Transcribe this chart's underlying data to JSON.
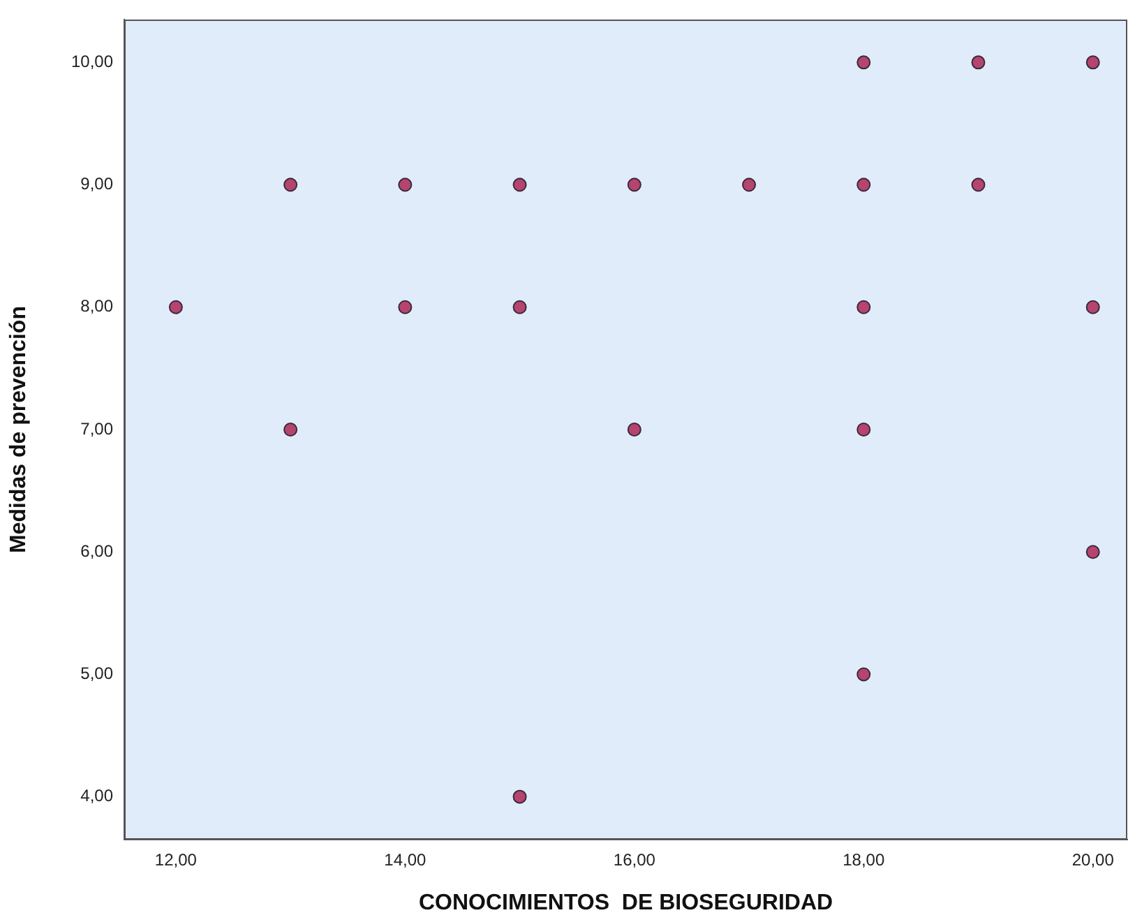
{
  "chart_data": {
    "type": "scatter",
    "xlabel": "CONOCIMIENTOS  DE BIOSEGURIDAD",
    "ylabel": "Medidas de prevención",
    "marker": "circle",
    "grid": false,
    "x": [
      12,
      13,
      13,
      14,
      14,
      15,
      15,
      15,
      16,
      16,
      17,
      18,
      18,
      18,
      18,
      18,
      19,
      19,
      20,
      20,
      20
    ],
    "values": [
      8,
      9,
      7,
      9,
      8,
      9,
      8,
      4,
      9,
      7,
      9,
      10,
      9,
      8,
      7,
      5,
      10,
      9,
      10,
      8,
      6
    ],
    "color": "#b5446f",
    "xlim": [
      11.55,
      20.3
    ],
    "xticks": [
      {
        "value": 12,
        "label": "12,00"
      },
      {
        "value": 14,
        "label": "14,00"
      },
      {
        "value": 16,
        "label": "16,00"
      },
      {
        "value": 18,
        "label": "18,00"
      },
      {
        "value": 20,
        "label": "20,00"
      }
    ],
    "ylim": [
      3.65,
      10.35
    ],
    "yticks": [
      {
        "value": 4,
        "label": "4,00"
      },
      {
        "value": 5,
        "label": "5,00"
      },
      {
        "value": 6,
        "label": "6,00"
      },
      {
        "value": 7,
        "label": "7,00"
      },
      {
        "value": 8,
        "label": "8,00"
      },
      {
        "value": 9,
        "label": "9,00"
      },
      {
        "value": 10,
        "label": "10,00"
      }
    ]
  }
}
